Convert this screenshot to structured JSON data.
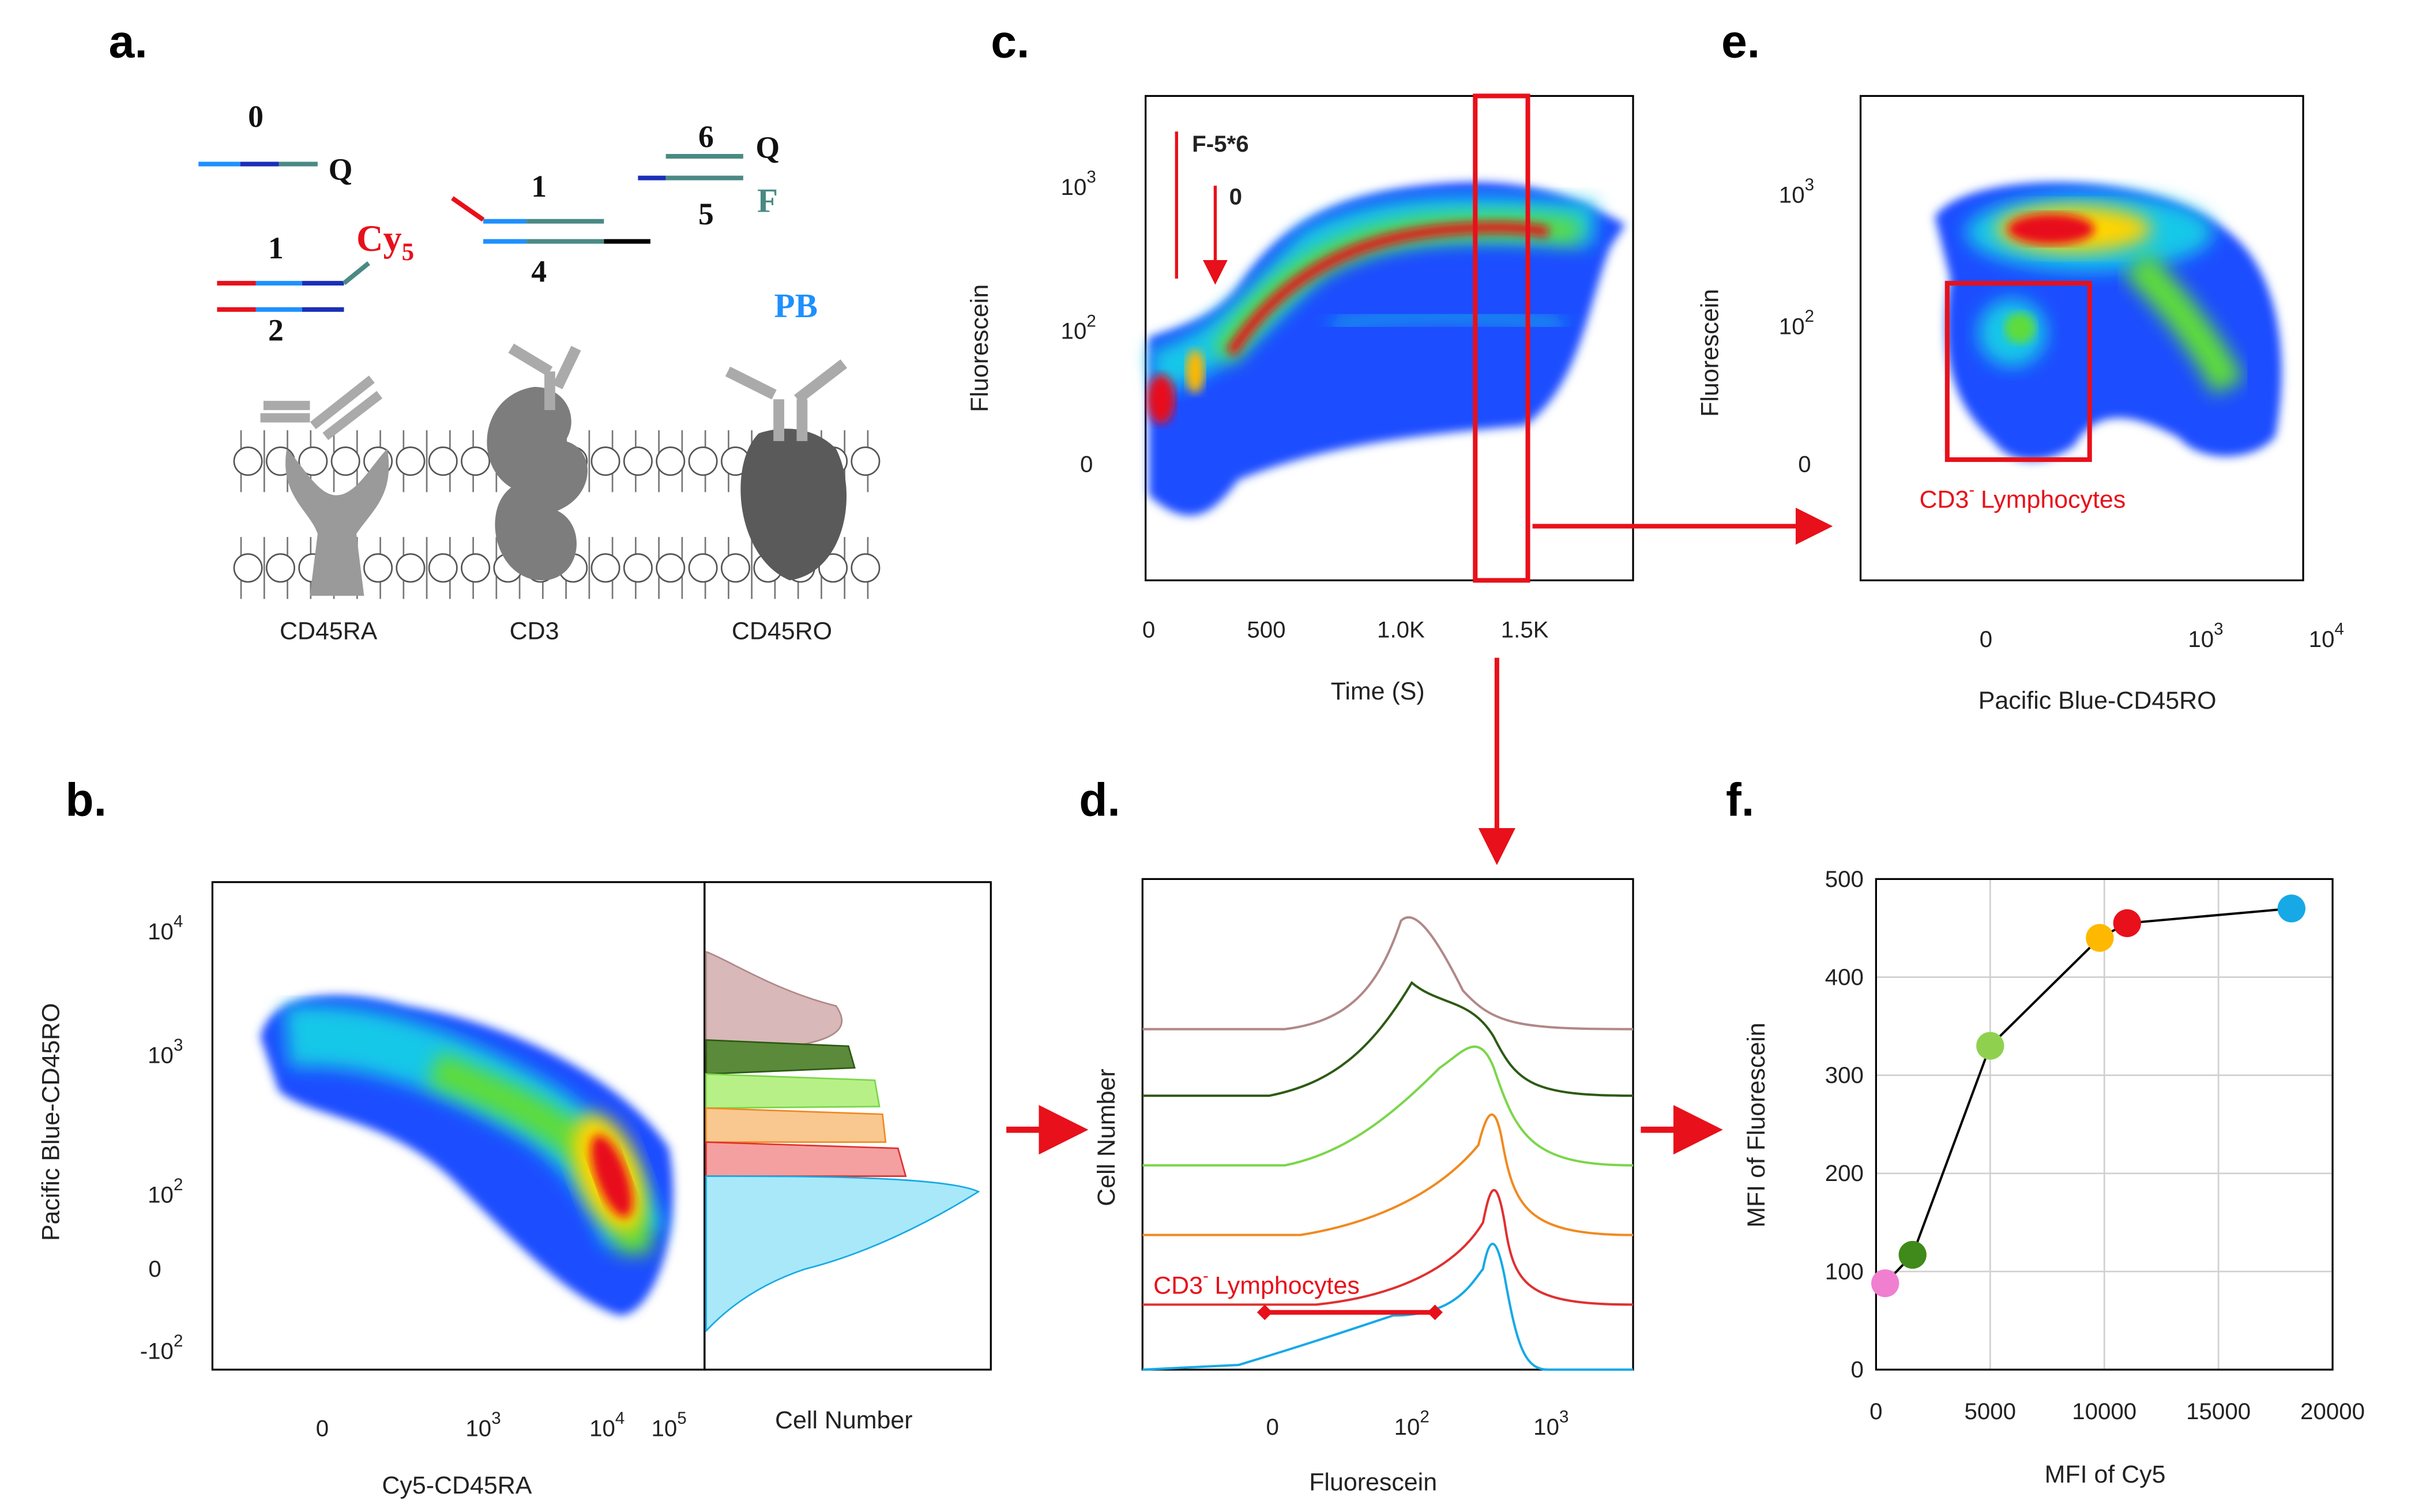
{
  "panels": {
    "a": {
      "label": "a.",
      "strands": [
        "0",
        "Q",
        "1",
        "Cy",
        "5",
        "2",
        "1",
        "4",
        "6",
        "Q",
        "5",
        "F",
        "PB"
      ],
      "proteins": [
        "CD45RA",
        "CD3",
        "CD45RO"
      ]
    },
    "b": {
      "label": "b.",
      "ylabel": "Pacific Blue-CD45RO",
      "xlabel": "Cy5-CD45RA",
      "hist_label": "Cell Number",
      "yticks": [
        {
          "base": "10",
          "exp": "4"
        },
        {
          "base": "10",
          "exp": "3"
        },
        {
          "base": "10",
          "exp": "2"
        },
        {
          "base": "0"
        },
        {
          "base": "-10",
          "exp": "2"
        }
      ],
      "xticks": [
        {
          "base": "0"
        },
        {
          "base": "10",
          "exp": "3"
        },
        {
          "base": "10",
          "exp": "4"
        },
        {
          "base": "10",
          "exp": "5"
        }
      ]
    },
    "c": {
      "label": "c.",
      "ylabel": "Fluorescein",
      "xlabel": "Time (S)",
      "yticks": [
        {
          "base": "10",
          "exp": "3"
        },
        {
          "base": "10",
          "exp": "2"
        },
        {
          "base": "0"
        }
      ],
      "xticks": [
        "0",
        "500",
        "1.0K",
        "1.5K"
      ],
      "annotations": [
        "F-5*6",
        "0"
      ]
    },
    "d": {
      "label": "d.",
      "ylabel": "Cell Number",
      "xlabel": "Fluorescein",
      "xticks": [
        {
          "base": "0"
        },
        {
          "base": "10",
          "exp": "2"
        },
        {
          "base": "10",
          "exp": "3"
        }
      ],
      "gate": {
        "name": "CD3",
        "sup": "-",
        "rest": "Lymphocytes"
      }
    },
    "e": {
      "label": "e.",
      "ylabel": "Fluorescein",
      "xlabel": "Pacific Blue-CD45RO",
      "yticks": [
        {
          "base": "10",
          "exp": "3"
        },
        {
          "base": "10",
          "exp": "2"
        },
        {
          "base": "0"
        }
      ],
      "xticks": [
        {
          "base": "0"
        },
        {
          "base": "10",
          "exp": "3"
        },
        {
          "base": "10",
          "exp": "4"
        }
      ],
      "gate": {
        "name": "CD3",
        "sup": "-",
        "rest": "Lymphocytes"
      }
    },
    "f": {
      "label": "f."
    }
  },
  "chart_data": {
    "type": "scatter",
    "xlabel": "MFI of Cy5",
    "ylabel": "MFI of Fluorescein",
    "x": [
      400,
      1600,
      5000,
      9800,
      11000,
      18200
    ],
    "values": [
      88,
      117,
      330,
      440,
      455,
      470
    ],
    "colors": [
      "#f07fd0",
      "#3f8a1a",
      "#8fd14f",
      "#ffb800",
      "#e8101a",
      "#16a9e6"
    ],
    "xlim": [
      0,
      20000
    ],
    "ylim": [
      0,
      500
    ],
    "xticks": [
      0,
      5000,
      10000,
      15000,
      20000
    ],
    "yticks": [
      0,
      100,
      200,
      300,
      400,
      500
    ],
    "grid": true,
    "line_color": "#000"
  }
}
